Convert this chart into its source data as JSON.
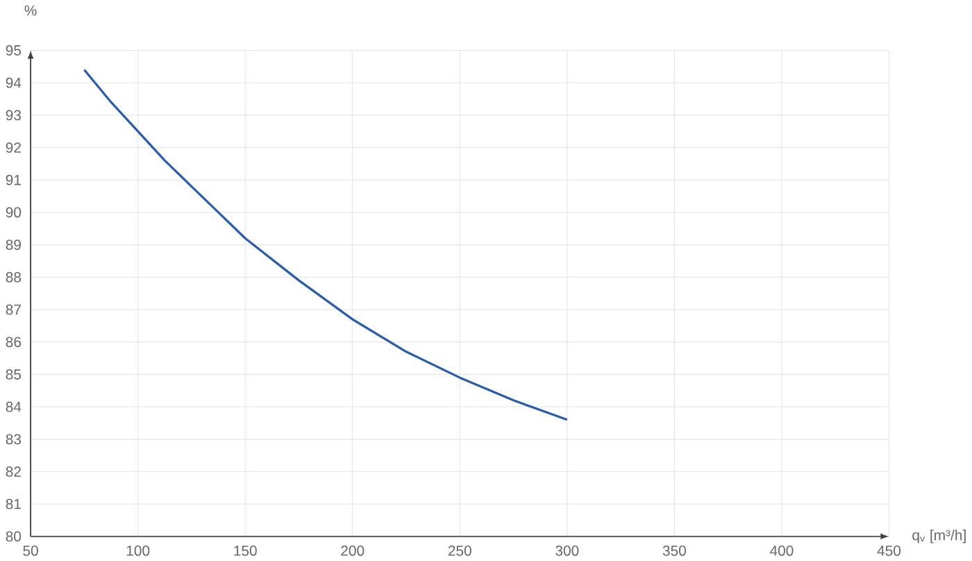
{
  "chart_data": {
    "type": "line",
    "xlabel": "q$_{v}$ [m³/h]",
    "ylabel": "%",
    "x": [
      75,
      87.5,
      100,
      112.5,
      125,
      137.5,
      150,
      175,
      200,
      225,
      250,
      275,
      300
    ],
    "series": [
      {
        "color": "#2a5ca8",
        "values": [
          94.4,
          93.4,
          92.5,
          91.6,
          90.8,
          90.0,
          89.2,
          87.9,
          86.7,
          85.7,
          84.9,
          84.2,
          83.6
        ]
      }
    ],
    "xlim": [
      50,
      450
    ],
    "ylim": [
      80,
      95
    ],
    "xticks": [
      50,
      100,
      150,
      200,
      250,
      300,
      350,
      400,
      450
    ],
    "yticks": [
      80,
      81,
      82,
      83,
      84,
      85,
      86,
      87,
      88,
      89,
      90,
      91,
      92,
      93,
      94,
      95
    ],
    "grid": true,
    "marker": "none",
    "line_style": "solid"
  }
}
